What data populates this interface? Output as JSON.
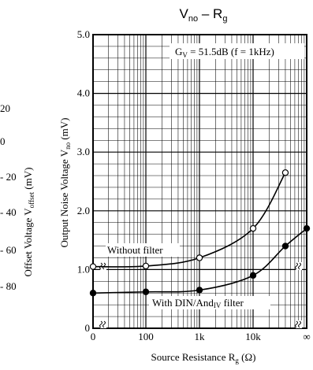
{
  "chart_data": {
    "type": "line",
    "title_main": "V",
    "title_sub": "no",
    "title_dash": " – R",
    "title_sub2": "g",
    "annotation_main": "G",
    "annotation_sub": "V",
    "annotation_rest": " = 51.5dB (f = 1kHz)",
    "ylabel_main": "Output Noise Voltage V",
    "ylabel_sub": "no",
    "ylabel_unit": " (mV)",
    "xlabel_main": "Source Resistance R",
    "xlabel_sub": "g",
    "xlabel_unit": " (Ω)",
    "ylim": [
      0,
      5
    ],
    "y_ticks": [
      "0",
      "1.0",
      "2.0",
      "3.0",
      "4.0",
      "5.0"
    ],
    "x_ticks": [
      "0",
      "100",
      "1k",
      "10k",
      "∞"
    ],
    "x_scale": "log (0 and ∞ on broken-axis ends)",
    "grid": true,
    "series": [
      {
        "name": "Without filter",
        "marker": "open-circle",
        "x": [
          "0",
          "100",
          "1000",
          "10000",
          "40000"
        ],
        "y": [
          1.05,
          1.06,
          1.2,
          1.7,
          2.65
        ]
      },
      {
        "name": "With DIN/Aud filter",
        "name_main": "With DIN/And",
        "name_sub": "IV",
        "name_rest": " filter",
        "marker": "filled-circle",
        "x": [
          "0",
          "100",
          "1000",
          "10000",
          "40000",
          "∞"
        ],
        "y": [
          0.6,
          0.62,
          0.65,
          0.9,
          1.4,
          1.7
        ]
      }
    ],
    "left_chart_partial": {
      "ylabel_main": "Offset Voltage V",
      "ylabel_sub": "offset",
      "ylabel_unit": " (mV)",
      "ticks": [
        "20",
        "0",
        "- 20",
        "- 40",
        "- 60",
        "- 80"
      ]
    }
  }
}
